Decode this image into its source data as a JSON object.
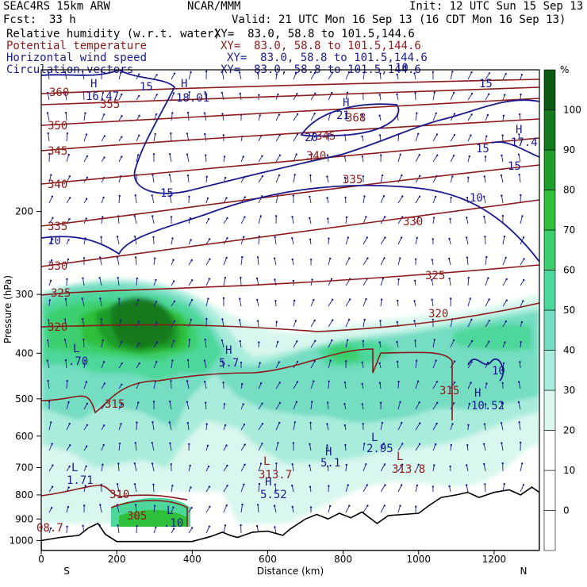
{
  "header": {
    "model": "SEAC4RS 15km ARW",
    "center": "NCAR/MMM",
    "init": "Init: 12 UTC Sun 15 Sep 13",
    "fcst_label": "Fcst:",
    "fcst_value": "33 h",
    "valid": "Valid: 21 UTC Mon 16 Sep 13 (16 CDT Mon 16 Sep 13)"
  },
  "fields": [
    {
      "name": "Relative humidity (w.r.t. water)",
      "xy": "XY=  83.0, 58.8 to 101.5,144.6",
      "color": "#000000"
    },
    {
      "name": "Potential temperature",
      "xy": "XY=  83.0, 58.8 to 101.5,144.6",
      "color": "#8b1a1a"
    },
    {
      "name": "Horizontal wind speed",
      "xy": "XY=  83.0, 58.8 to 101.5,144.6",
      "color": "#1a1a8c"
    },
    {
      "name": "Circulation vectors",
      "xy": "XY=  83.0, 58.8 to 101.5,144.6",
      "color": "#1a1a8c"
    }
  ],
  "chart_data": {
    "type": "cross-section",
    "xlabel": "Distance (km)",
    "ylabel": "Pressure (hPa)",
    "x_ticks": [
      0,
      200,
      400,
      600,
      800,
      1000,
      1200
    ],
    "y_ticks": [
      200,
      300,
      400,
      500,
      600,
      700,
      800,
      900,
      1000
    ],
    "xlim": [
      0,
      1320
    ],
    "ylim": [
      1050,
      100
    ],
    "y_scale": "log",
    "endpoints": {
      "left": "S",
      "right": "N"
    },
    "colorbar": {
      "unit": "%",
      "levels": [
        0,
        10,
        20,
        30,
        40,
        50,
        60,
        70,
        80,
        90,
        100
      ],
      "colors": [
        "#ffffff",
        "#ffffff",
        "#ffffff",
        "#d9f7ee",
        "#a9ecdb",
        "#74ddc2",
        "#4dd79a",
        "#3dcf6e",
        "#2fbf3b",
        "#1f9e2c",
        "#137a1e",
        "#0b5a14"
      ]
    },
    "theta_labels": [
      "360",
      "355",
      "350",
      "345",
      "340",
      "335",
      "330",
      "325",
      "320",
      "315",
      "310",
      "305",
      "368",
      "345",
      "340",
      "335",
      "330",
      "325",
      "320",
      "315",
      "313.7",
      "313.8"
    ],
    "wind_labels": [
      "15",
      "15",
      "15",
      "10",
      "10",
      "15",
      "15",
      "10",
      "10",
      "20"
    ],
    "max_min_labels": [
      {
        "type": "H",
        "value": "16.47"
      },
      {
        "type": "H",
        "value": "18.01"
      },
      {
        "type": "H",
        "value": "21"
      },
      {
        "type": "H",
        "value": "17.4"
      },
      {
        "type": "L",
        "value": ".70"
      },
      {
        "type": "H",
        "value": "5.7"
      },
      {
        "type": "L",
        "value": "1.71"
      },
      {
        "type": "L",
        "value": ".10"
      },
      {
        "type": "H",
        "value": "5.52"
      },
      {
        "type": "L",
        "value": "313.7"
      },
      {
        "type": "H",
        "value": "5.1"
      },
      {
        "type": "L",
        "value": "2.95"
      },
      {
        "type": "L",
        "value": "313.8"
      },
      {
        "type": "H",
        "value": "10.52"
      },
      {
        "type": "L",
        "value": "08.7"
      }
    ],
    "terrain_km": [
      0,
      50,
      100,
      125,
      150,
      170,
      200,
      250,
      300,
      350,
      400,
      450,
      480,
      500,
      520,
      560,
      600,
      640,
      660,
      700,
      730,
      760,
      790,
      820,
      850,
      870,
      890,
      920,
      960,
      1000,
      1030,
      1060,
      1100,
      1130,
      1160,
      1200,
      1240,
      1270,
      1300,
      1320
    ],
    "terrain_hpa": [
      1000,
      985,
      975,
      940,
      920,
      970,
      1005,
      1005,
      1005,
      1005,
      1005,
      980,
      960,
      975,
      985,
      960,
      955,
      975,
      945,
      900,
      880,
      900,
      875,
      895,
      870,
      895,
      920,
      885,
      880,
      875,
      840,
      810,
      800,
      790,
      810,
      790,
      780,
      800,
      770,
      790
    ]
  }
}
